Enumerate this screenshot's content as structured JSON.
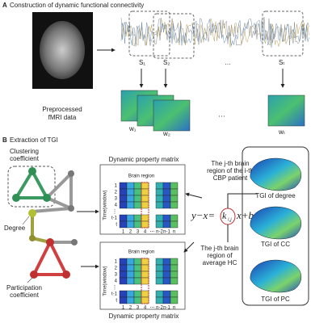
{
  "panel_a": {
    "letter": "A",
    "title": "Construction of dynamic functional connectivity",
    "input_label": [
      "Preprocessed",
      "fMRI data"
    ],
    "windows": [
      "S₁",
      "S₂",
      "…",
      "Sₜ"
    ],
    "matrices": [
      "w₁",
      "w₂",
      "wₜ"
    ]
  },
  "panel_b": {
    "letter": "B",
    "title": "Extraction of TGI",
    "graph_labels": {
      "clustering": [
        "Clustering",
        "coefficient"
      ],
      "degree": "Degree",
      "participation": [
        "Participation",
        "coefficient"
      ]
    },
    "matrices": [
      {
        "title": "Dynamic property matrix",
        "column_axis": "Brain region",
        "row_axis": "Time(window)",
        "rows": [
          "1",
          "2",
          "3",
          "4",
          "⋮",
          "t-1",
          "t"
        ],
        "columns": [
          "1",
          "2",
          "3",
          "4",
          "⋯",
          "n-2",
          "n-1",
          "n"
        ]
      },
      {
        "title": "Dynamic property matrix",
        "column_axis": "Brain region",
        "row_axis": "Time(window)",
        "rows": [
          "1",
          "2",
          "3",
          "4",
          "⋮",
          "t-1",
          "t"
        ],
        "columns": [
          "1",
          "2",
          "3",
          "4",
          "⋯",
          "n-2",
          "n-1",
          "n"
        ]
      }
    ],
    "annotations": {
      "patient": [
        "The j-th brain",
        "region of the i-th",
        "CBP patient"
      ],
      "control": [
        "The j-th brain",
        "region of",
        "average HC"
      ]
    },
    "equation": {
      "lhs": "y−x=",
      "k": "k",
      "k_sub": "i,j",
      "rhs": "x+b"
    },
    "outputs": [
      "TGI of degree",
      "TGI of CC",
      "TGI of PC"
    ]
  }
}
